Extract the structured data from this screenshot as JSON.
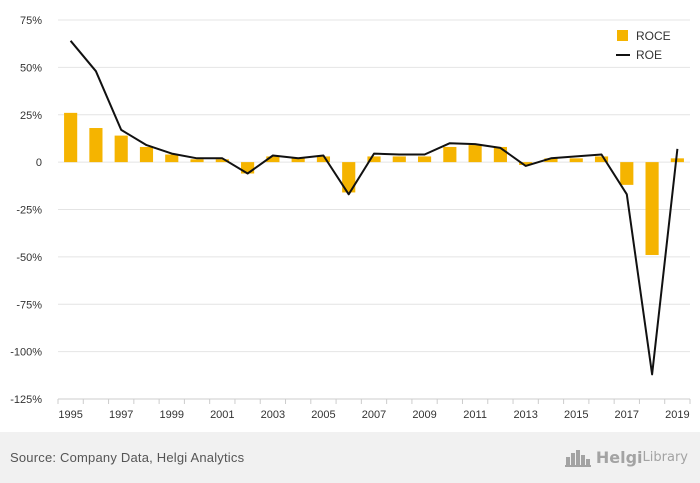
{
  "chart_data": {
    "type": "bar+line",
    "x": [
      1995,
      1996,
      1997,
      1998,
      1999,
      2000,
      2001,
      2002,
      2003,
      2004,
      2005,
      2006,
      2007,
      2008,
      2009,
      2010,
      2011,
      2012,
      2013,
      2014,
      2015,
      2016,
      2017,
      2018,
      2019
    ],
    "series": [
      {
        "name": "ROCE",
        "kind": "bar",
        "color": "#f5b400",
        "values": [
          26,
          18,
          14,
          8,
          4,
          1.5,
          1.5,
          -6,
          3,
          2,
          3,
          -16,
          3,
          3,
          3,
          8,
          9,
          8,
          -1.5,
          2,
          2,
          3,
          -12,
          -49,
          2
        ]
      },
      {
        "name": "ROE",
        "kind": "line",
        "color": "#111111",
        "values": [
          64,
          48,
          17,
          9,
          4.5,
          2,
          2,
          -6,
          3.5,
          2,
          3.5,
          -17,
          4.5,
          4,
          4,
          10,
          9.5,
          7.5,
          -2,
          2,
          3,
          4,
          -17,
          -112,
          7
        ]
      }
    ],
    "yticks": [
      75,
      50,
      25,
      0,
      -25,
      -50,
      -75,
      -100,
      -125
    ],
    "ytick_labels": [
      "75%",
      "50%",
      "25%",
      "0",
      "-25%",
      "-50%",
      "-75%",
      "-100%",
      "-125%"
    ],
    "xtick_labels": [
      "1995",
      "1997",
      "1999",
      "2001",
      "2003",
      "2005",
      "2007",
      "2009",
      "2011",
      "2013",
      "2015",
      "2017",
      "2019"
    ],
    "ylim": [
      -125,
      75
    ],
    "legend": [
      {
        "label": "ROCE",
        "kind": "bar"
      },
      {
        "label": "ROE",
        "kind": "line"
      }
    ],
    "legend_position": "top-right",
    "grid": true
  },
  "footer": {
    "source": "Source: Company Data, Helgi Analytics",
    "brand_name": "Helgi",
    "brand_suffix": "Library"
  }
}
